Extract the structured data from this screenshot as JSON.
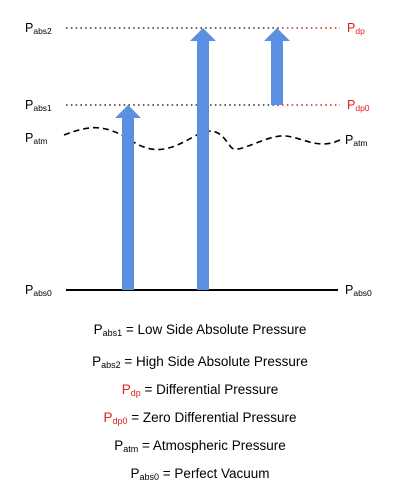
{
  "levels": {
    "abs2": {
      "symbol": "P",
      "sub": "abs2"
    },
    "abs1": {
      "symbol": "P",
      "sub": "abs1"
    },
    "atm": {
      "symbol": "P",
      "sub": "atm"
    },
    "abs0": {
      "symbol": "P",
      "sub": "abs0"
    },
    "dp": {
      "symbol": "P",
      "sub": "dp"
    },
    "dp0": {
      "symbol": "P",
      "sub": "dp0"
    }
  },
  "legend": [
    {
      "symbol": "P",
      "sub": "abs1",
      "text": " = Low Side Absolute Pressure",
      "red": false
    },
    {
      "symbol": "P",
      "sub": "abs2",
      "text": " = High Side Absolute Pressure",
      "red": false
    },
    {
      "symbol": "P",
      "sub": "dp",
      "text": " = Differential Pressure",
      "red": true
    },
    {
      "symbol": "P",
      "sub": "dp0",
      "text": " = Zero Differential Pressure",
      "red": true
    },
    {
      "symbol": "P",
      "sub": "atm",
      "text": " = Atmospheric Pressure",
      "red": false
    },
    {
      "symbol": "P",
      "sub": "abs0",
      "text": " = Perfect Vacuum",
      "red": false
    }
  ],
  "colors": {
    "arrow": "#5b8fe0",
    "accent": "#e02020",
    "line": "#000000",
    "dotted": "#333333"
  }
}
